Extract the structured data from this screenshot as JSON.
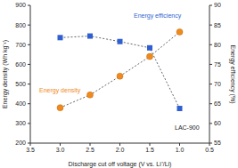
{
  "chart_data": {
    "type": "line",
    "x_label": "Discharge cut off voltage (V vs. Li⁺/Li)",
    "y_label": "Energy density (Wh kg⁻¹)",
    "y2_label": "Energy efficiency (%)",
    "annotations": [
      "LAC-900"
    ],
    "x": [
      3.0,
      2.5,
      2.0,
      1.5,
      1.0
    ],
    "xlim": [
      3.5,
      0.5
    ],
    "xticks": [
      3.5,
      {
        "value": 3.0,
        "label": "3.0"
      },
      2.5,
      {
        "value": 2.0,
        "label": "2.0"
      },
      1.5,
      {
        "value": 1.0,
        "label": "1.0"
      },
      0.5
    ],
    "ylim": [
      200,
      900
    ],
    "yticks": [
      200,
      300,
      400,
      500,
      600,
      700,
      800,
      900
    ],
    "y2lim": [
      55,
      90
    ],
    "y2ticks": [
      55,
      60,
      65,
      70,
      75,
      80,
      85,
      90
    ],
    "series": [
      {
        "name": "Energy density",
        "color": "#f08a1c",
        "values": [
          380,
          445,
          540,
          640,
          765
        ],
        "marker": "circle",
        "line_style": "dashed"
      },
      {
        "name": "Energy efficiency",
        "color": "#2f5fd0",
        "values": [
          81.8,
          82.2,
          80.8,
          79.2,
          63.8
        ],
        "marker": "square",
        "line_style": "dashed",
        "axis": "y2"
      }
    ]
  }
}
